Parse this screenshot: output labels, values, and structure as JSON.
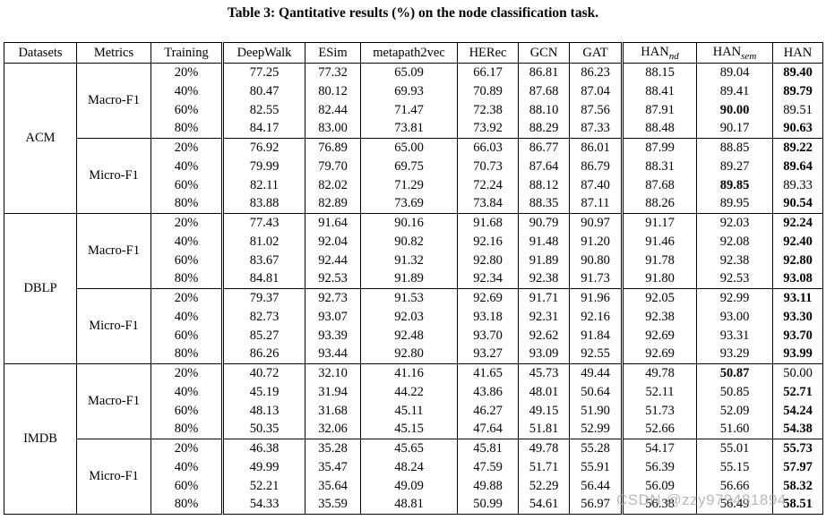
{
  "title": "Table 3: Qantitative results (%) on the node classification task.",
  "watermark": "CSDN @zzy979481894",
  "table": {
    "headers": [
      {
        "label": "Datasets"
      },
      {
        "label": "Metrics"
      },
      {
        "label": "Training"
      },
      {
        "label": "DeepWalk"
      },
      {
        "label": "ESim"
      },
      {
        "label": "metapath2vec"
      },
      {
        "label": "HERec"
      },
      {
        "label": "GCN"
      },
      {
        "label": "GAT"
      },
      {
        "label": "HAN",
        "sub": "nd"
      },
      {
        "label": "HAN",
        "sub": "sem"
      },
      {
        "label": "HAN"
      }
    ],
    "groups": [
      {
        "dataset": "ACM",
        "metrics": [
          {
            "metric": "Macro-F1",
            "rows": [
              {
                "training": "20%",
                "values": [
                  "77.25",
                  "77.32",
                  "65.09",
                  "66.17",
                  "86.81",
                  "86.23",
                  "88.15",
                  "89.04",
                  "89.40"
                ],
                "bold": [
                  8
                ]
              },
              {
                "training": "40%",
                "values": [
                  "80.47",
                  "80.12",
                  "69.93",
                  "70.89",
                  "87.68",
                  "87.04",
                  "88.41",
                  "89.41",
                  "89.79"
                ],
                "bold": [
                  8
                ]
              },
              {
                "training": "60%",
                "values": [
                  "82.55",
                  "82.44",
                  "71.47",
                  "72.38",
                  "88.10",
                  "87.56",
                  "87.91",
                  "90.00",
                  "89.51"
                ],
                "bold": [
                  7
                ]
              },
              {
                "training": "80%",
                "values": [
                  "84.17",
                  "83.00",
                  "73.81",
                  "73.92",
                  "88.29",
                  "87.33",
                  "88.48",
                  "90.17",
                  "90.63"
                ],
                "bold": [
                  8
                ]
              }
            ]
          },
          {
            "metric": "Micro-F1",
            "rows": [
              {
                "training": "20%",
                "values": [
                  "76.92",
                  "76.89",
                  "65.00",
                  "66.03",
                  "86.77",
                  "86.01",
                  "87.99",
                  "88.85",
                  "89.22"
                ],
                "bold": [
                  8
                ]
              },
              {
                "training": "40%",
                "values": [
                  "79.99",
                  "79.70",
                  "69.75",
                  "70.73",
                  "87.64",
                  "86.79",
                  "88.31",
                  "89.27",
                  "89.64"
                ],
                "bold": [
                  8
                ]
              },
              {
                "training": "60%",
                "values": [
                  "82.11",
                  "82.02",
                  "71.29",
                  "72.24",
                  "88.12",
                  "87.40",
                  "87.68",
                  "89.85",
                  "89.33"
                ],
                "bold": [
                  7
                ]
              },
              {
                "training": "80%",
                "values": [
                  "83.88",
                  "82.89",
                  "73.69",
                  "73.84",
                  "88.35",
                  "87.11",
                  "88.26",
                  "89.95",
                  "90.54"
                ],
                "bold": [
                  8
                ]
              }
            ]
          }
        ]
      },
      {
        "dataset": "DBLP",
        "metrics": [
          {
            "metric": "Macro-F1",
            "rows": [
              {
                "training": "20%",
                "values": [
                  "77.43",
                  "91.64",
                  "90.16",
                  "91.68",
                  "90.79",
                  "90.97",
                  "91.17",
                  "92.03",
                  "92.24"
                ],
                "bold": [
                  8
                ]
              },
              {
                "training": "40%",
                "values": [
                  "81.02",
                  "92.04",
                  "90.82",
                  "92.16",
                  "91.48",
                  "91.20",
                  "91.46",
                  "92.08",
                  "92.40"
                ],
                "bold": [
                  8
                ]
              },
              {
                "training": "60%",
                "values": [
                  "83.67",
                  "92.44",
                  "91.32",
                  "92.80",
                  "91.89",
                  "90.80",
                  "91.78",
                  "92.38",
                  "92.80"
                ],
                "bold": [
                  8
                ]
              },
              {
                "training": "80%",
                "values": [
                  "84.81",
                  "92.53",
                  "91.89",
                  "92.34",
                  "92.38",
                  "91.73",
                  "91.80",
                  "92.53",
                  "93.08"
                ],
                "bold": [
                  8
                ]
              }
            ]
          },
          {
            "metric": "Micro-F1",
            "rows": [
              {
                "training": "20%",
                "values": [
                  "79.37",
                  "92.73",
                  "91.53",
                  "92.69",
                  "91.71",
                  "91.96",
                  "92.05",
                  "92.99",
                  "93.11"
                ],
                "bold": [
                  8
                ]
              },
              {
                "training": "40%",
                "values": [
                  "82.73",
                  "93.07",
                  "92.03",
                  "93.18",
                  "92.31",
                  "92.16",
                  "92.38",
                  "93.00",
                  "93.30"
                ],
                "bold": [
                  8
                ]
              },
              {
                "training": "60%",
                "values": [
                  "85.27",
                  "93.39",
                  "92.48",
                  "93.70",
                  "92.62",
                  "91.84",
                  "92.69",
                  "93.31",
                  "93.70"
                ],
                "bold": [
                  8
                ]
              },
              {
                "training": "80%",
                "values": [
                  "86.26",
                  "93.44",
                  "92.80",
                  "93.27",
                  "93.09",
                  "92.55",
                  "92.69",
                  "93.29",
                  "93.99"
                ],
                "bold": [
                  8
                ]
              }
            ]
          }
        ]
      },
      {
        "dataset": "IMDB",
        "metrics": [
          {
            "metric": "Macro-F1",
            "rows": [
              {
                "training": "20%",
                "values": [
                  "40.72",
                  "32.10",
                  "41.16",
                  "41.65",
                  "45.73",
                  "49.44",
                  "49.78",
                  "50.87",
                  "50.00"
                ],
                "bold": [
                  7
                ]
              },
              {
                "training": "40%",
                "values": [
                  "45.19",
                  "31.94",
                  "44.22",
                  "43.86",
                  "48.01",
                  "50.64",
                  "52.11",
                  "50.85",
                  "52.71"
                ],
                "bold": [
                  8
                ]
              },
              {
                "training": "60%",
                "values": [
                  "48.13",
                  "31.68",
                  "45.11",
                  "46.27",
                  "49.15",
                  "51.90",
                  "51.73",
                  "52.09",
                  "54.24"
                ],
                "bold": [
                  8
                ]
              },
              {
                "training": "80%",
                "values": [
                  "50.35",
                  "32.06",
                  "45.15",
                  "47.64",
                  "51.81",
                  "52.99",
                  "52.66",
                  "51.60",
                  "54.38"
                ],
                "bold": [
                  8
                ]
              }
            ]
          },
          {
            "metric": "Micro-F1",
            "rows": [
              {
                "training": "20%",
                "values": [
                  "46.38",
                  "35.28",
                  "45.65",
                  "45.81",
                  "49.78",
                  "55.28",
                  "54.17",
                  "55.01",
                  "55.73"
                ],
                "bold": [
                  8
                ]
              },
              {
                "training": "40%",
                "values": [
                  "49.99",
                  "35.47",
                  "48.24",
                  "47.59",
                  "51.71",
                  "55.91",
                  "56.39",
                  "55.15",
                  "57.97"
                ],
                "bold": [
                  8
                ]
              },
              {
                "training": "60%",
                "values": [
                  "52.21",
                  "35.64",
                  "49.09",
                  "49.88",
                  "52.29",
                  "56.44",
                  "56.09",
                  "56.66",
                  "58.32"
                ],
                "bold": [
                  8
                ]
              },
              {
                "training": "80%",
                "values": [
                  "54.33",
                  "35.59",
                  "48.81",
                  "50.99",
                  "54.61",
                  "56.97",
                  "56.38",
                  "56.49",
                  "58.51"
                ],
                "bold": [
                  8
                ]
              }
            ]
          }
        ]
      }
    ]
  }
}
